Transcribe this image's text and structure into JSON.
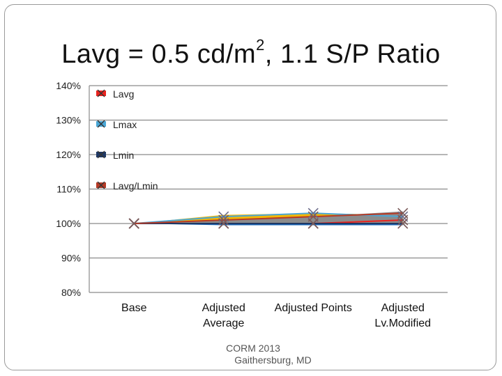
{
  "slide": {
    "title_main": "Lavg = 0.5 cd/m",
    "title_sup": "2",
    "title_tail": ", 1.1 S/P Ratio",
    "footer_line1": "CORM 2013",
    "footer_line2": "Gaithersburg, MD"
  },
  "chart_data": {
    "type": "area",
    "categories": [
      "Base",
      "Adjusted\nAverage",
      "Adjusted Points",
      "Adjusted\nLv.Modified"
    ],
    "ylim": [
      0.8,
      1.4
    ],
    "yticks": [
      0.8,
      0.9,
      1.0,
      1.1,
      1.2,
      1.3,
      1.4
    ],
    "ytick_labels": [
      "80%",
      "90%",
      "100%",
      "110%",
      "120%",
      "130%",
      "140%"
    ],
    "grid": true,
    "legend_position": "top-left",
    "series": [
      {
        "name": "Lavg",
        "color": "#e8231e",
        "values": [
          1.0,
          1.0,
          1.0,
          1.01
        ]
      },
      {
        "name": "Lmax",
        "color": "#4aa7d6",
        "values": [
          1.0,
          1.02,
          1.03,
          1.02
        ]
      },
      {
        "name": "Lmin",
        "color": "#1f3864",
        "values": [
          1.0,
          1.0,
          1.0,
          1.0
        ]
      },
      {
        "name": "Lavg/Lmin",
        "color": "#b53a26",
        "values": [
          1.0,
          1.01,
          1.02,
          1.03
        ]
      }
    ],
    "area_layers": [
      {
        "color": "#f2b705",
        "values": [
          1.0,
          1.025,
          1.03,
          1.025
        ]
      },
      {
        "color": "#1a64b5",
        "values": [
          1.0,
          0.995,
          0.995,
          0.995
        ]
      },
      {
        "color": "#8c8c8c",
        "values": [
          1.0,
          1.008,
          1.02,
          1.035
        ]
      }
    ]
  }
}
